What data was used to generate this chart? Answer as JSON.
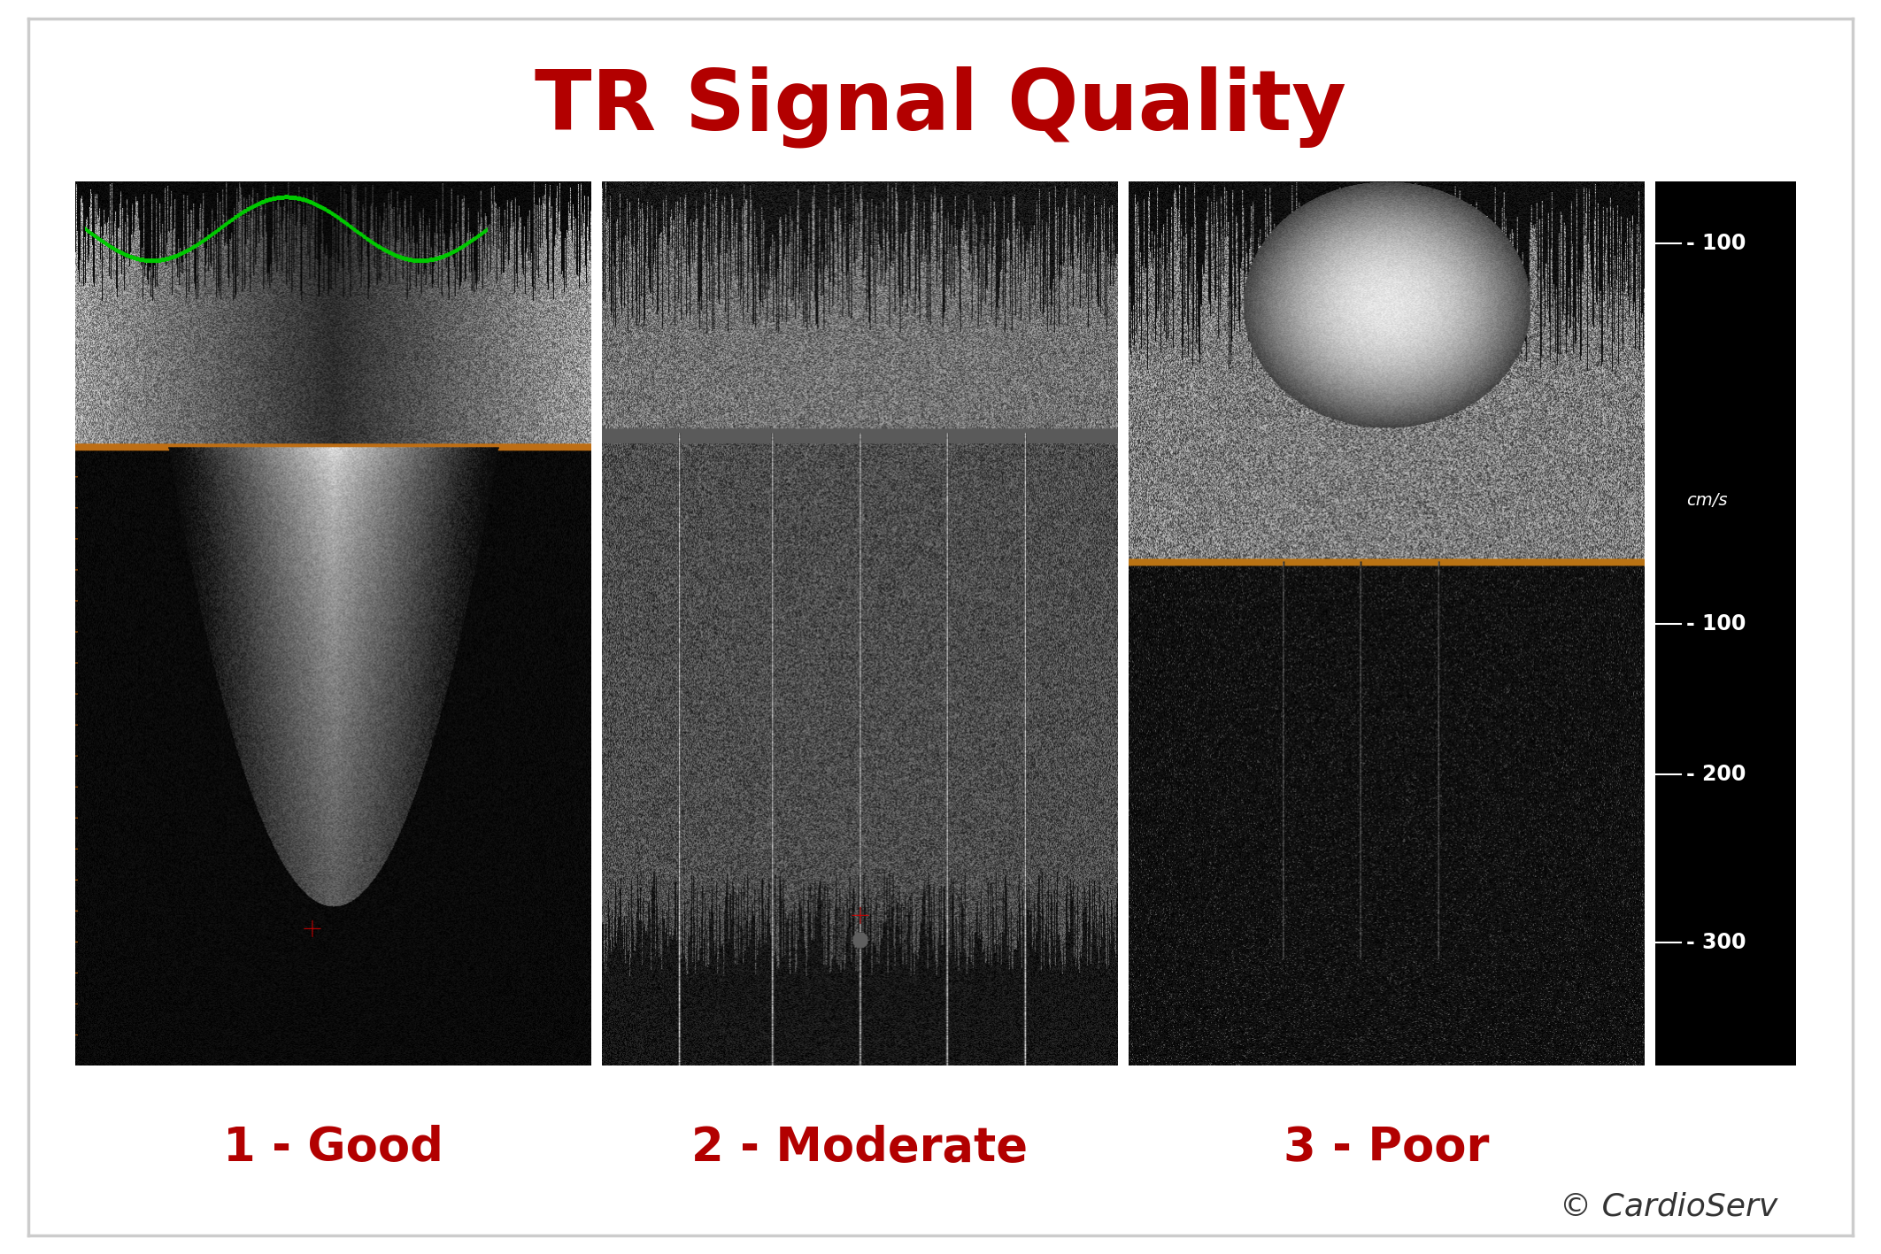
{
  "title": "TR Signal Quality",
  "title_color": "#B20000",
  "title_fontsize": 68,
  "labels": [
    "1 - Good",
    "2 - Moderate",
    "3 - Poor"
  ],
  "label_color": "#B20000",
  "label_fontsize": 38,
  "copyright": "© CardioServ",
  "copyright_color": "#333333",
  "copyright_fontsize": 26,
  "background_color": "#ffffff",
  "border_color": "#cccccc",
  "fig_width": 21.25,
  "fig_height": 14.17,
  "scale_ticks": [
    [
      0.07,
      "- 100"
    ],
    [
      0.36,
      "cm/s"
    ],
    [
      0.5,
      "- 100"
    ],
    [
      0.67,
      "- 200"
    ],
    [
      0.86,
      "- 300"
    ]
  ]
}
